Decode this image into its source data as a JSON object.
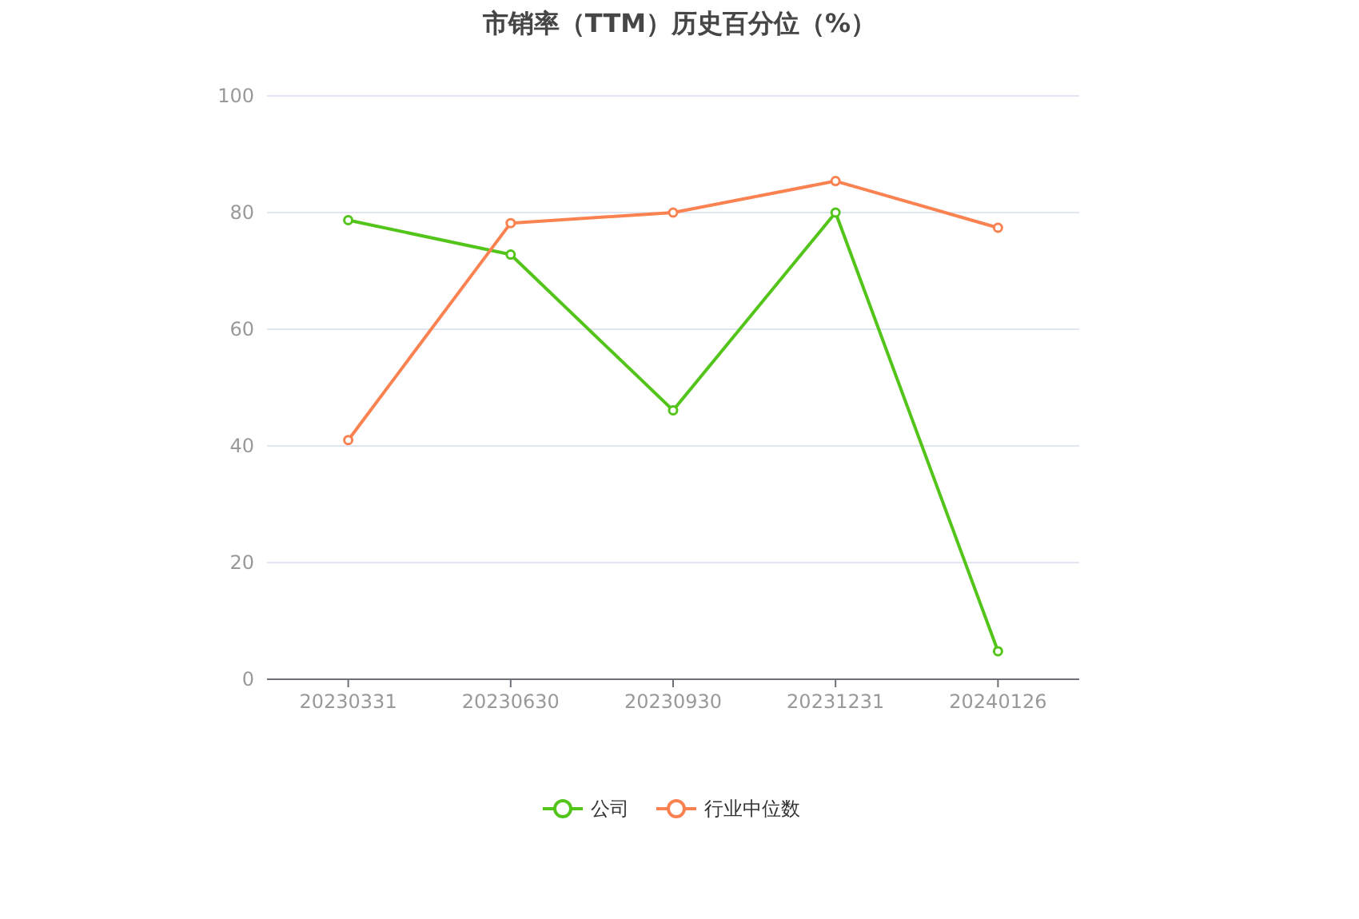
{
  "chart_data": {
    "type": "line",
    "title": "市销率（TTM）历史百分位（%）",
    "categories": [
      "20230331",
      "20230630",
      "20230930",
      "20231231",
      "20240126"
    ],
    "series": [
      {
        "name": "公司",
        "color": "#52c41a",
        "values": [
          78.7,
          72.8,
          46.1,
          80.0,
          4.8
        ]
      },
      {
        "name": "行业中位数",
        "color": "#fa8150",
        "values": [
          41.0,
          78.2,
          80.0,
          85.4,
          77.4
        ]
      }
    ],
    "ylim": [
      0,
      100
    ],
    "yticks": [
      0,
      20,
      40,
      60,
      80,
      100
    ],
    "grid": "y",
    "legend": "bottom",
    "marker": "circle"
  }
}
